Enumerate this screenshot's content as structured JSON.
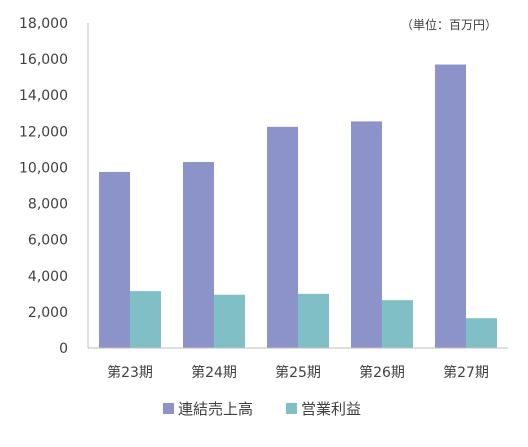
{
  "chart_data": {
    "type": "bar",
    "unit_note": "（単位：百万円）",
    "categories": [
      "第23期",
      "第24期",
      "第25期",
      "第26期",
      "第27期"
    ],
    "series": [
      {
        "name": "連結売上高",
        "color": "#8B93C8",
        "values": [
          9750,
          10300,
          12250,
          12550,
          15700
        ]
      },
      {
        "name": "営業利益",
        "color": "#7FBFC5",
        "values": [
          3150,
          2950,
          3000,
          2650,
          1650
        ]
      }
    ],
    "ylim": [
      0,
      18000
    ],
    "yticks": [
      "0",
      "2,000",
      "4,000",
      "6,000",
      "8,000",
      "10,000",
      "12,000",
      "14,000",
      "16,000",
      "18,000"
    ],
    "grid": false,
    "legend_position": "bottom"
  }
}
